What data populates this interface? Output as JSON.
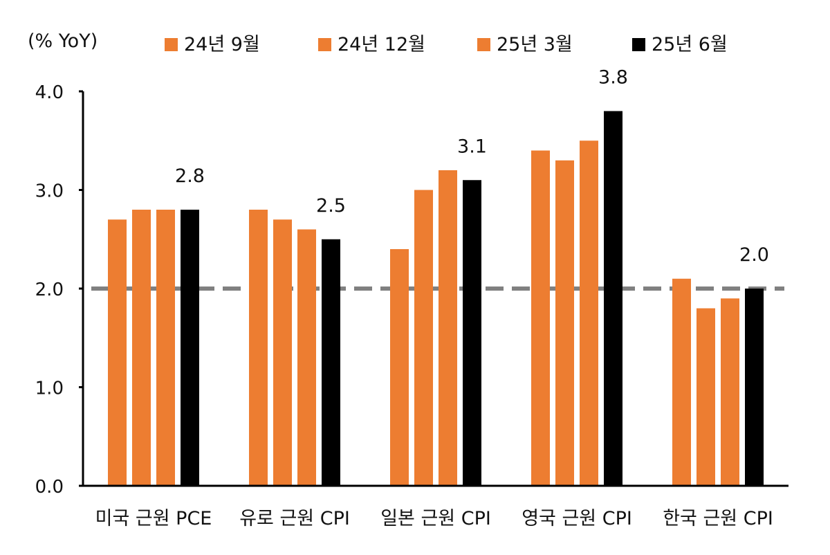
{
  "chart_data": {
    "type": "bar",
    "unit_label": "(% YoY)",
    "categories": [
      "미국 근원 PCE",
      "유로 근원 CPI",
      "일본 근원 CPI",
      "영국 근원 CPI",
      "한국 근원 CPI"
    ],
    "series": [
      {
        "name": "24년 9월",
        "color": "#ED7D31",
        "values": [
          2.7,
          2.8,
          2.4,
          3.4,
          2.1
        ]
      },
      {
        "name": "24년 12월",
        "color": "#ED7D31",
        "values": [
          2.8,
          2.7,
          3.0,
          3.3,
          1.8
        ]
      },
      {
        "name": "25년 3월",
        "color": "#ED7D31",
        "values": [
          2.8,
          2.6,
          3.2,
          3.5,
          1.9
        ]
      },
      {
        "name": "25년 6월",
        "color": "#000000",
        "values": [
          2.8,
          2.5,
          3.1,
          3.8,
          2.0
        ]
      }
    ],
    "data_labels": [
      "2.8",
      "2.5",
      "3.1",
      "3.8",
      "2.0"
    ],
    "yticks": [
      "0.0",
      "1.0",
      "2.0",
      "3.0",
      "4.0"
    ],
    "ylim": [
      0,
      4
    ],
    "reference_line": {
      "value": 2.0,
      "color": "#808080",
      "style": "dashed"
    },
    "legend_position": "top",
    "grid": false
  }
}
